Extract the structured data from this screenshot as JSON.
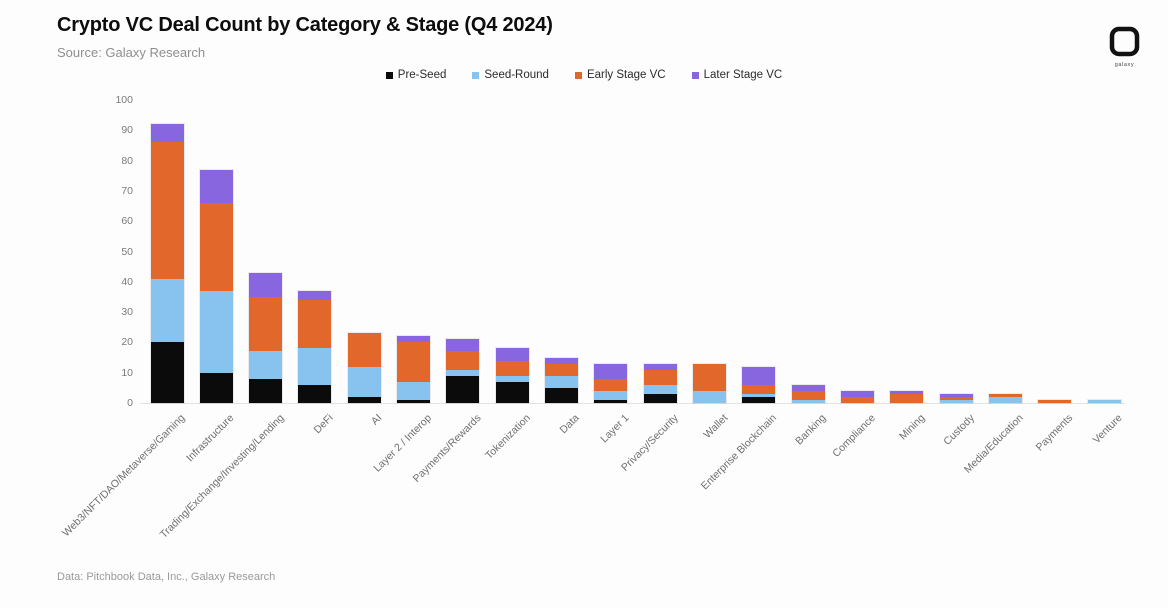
{
  "header": {
    "title": "Crypto VC Deal Count by Category & Stage (Q4 2024)",
    "source": "Source: Galaxy Research",
    "logo_text": "galaxy"
  },
  "footer": {
    "text": "Data: Pitchbook Data, Inc., Galaxy Research"
  },
  "chart_data": {
    "type": "bar",
    "stacked": true,
    "title": "Crypto VC Deal Count by Category & Stage (Q4 2024)",
    "xlabel": "",
    "ylabel": "",
    "ylim": [
      0,
      100
    ],
    "ytick_step": 10,
    "grid": false,
    "legend_position": "top",
    "categories": [
      "Web3/NFT/DAO/Metaverse/Gaming",
      "Infrastructure",
      "Trading/Exchange/Investing/Lending",
      "DeFi",
      "AI",
      "Layer 2 / Interop",
      "Payments/Rewards",
      "Tokenization",
      "Data",
      "Layer 1",
      "Privacy/Security",
      "Wallet",
      "Enterprise Blockchain",
      "Banking",
      "Compliance",
      "Mining",
      "Custody",
      "Media/Education",
      "Payments",
      "Venture"
    ],
    "series": [
      {
        "name": "Pre-Seed",
        "color": "#0b0b0b",
        "values": [
          20,
          10,
          8,
          6,
          2,
          1,
          9,
          7,
          5,
          1,
          3,
          0,
          2,
          0,
          0,
          0,
          0,
          0,
          0,
          0
        ]
      },
      {
        "name": "Seed-Round",
        "color": "#87c3ee",
        "values": [
          21,
          27,
          9,
          12,
          10,
          6,
          2,
          2,
          4,
          3,
          3,
          4,
          1,
          1,
          0,
          0,
          1,
          2,
          0,
          1
        ]
      },
      {
        "name": "Early Stage VC",
        "color": "#e2672a",
        "values": [
          45,
          29,
          18,
          16,
          11,
          13,
          6,
          5,
          4,
          4,
          5,
          9,
          3,
          3,
          2,
          3,
          1,
          1,
          1,
          0
        ]
      },
      {
        "name": "Later Stage VC",
        "color": "#8766df",
        "values": [
          6,
          11,
          8,
          3,
          0,
          2,
          4,
          4,
          2,
          5,
          2,
          0,
          6,
          2,
          2,
          1,
          1,
          0,
          0,
          0
        ]
      }
    ],
    "totals": [
      92,
      77,
      43,
      37,
      23,
      22,
      21,
      18,
      15,
      13,
      13,
      13,
      12,
      6,
      4,
      4,
      3,
      3,
      1,
      1
    ]
  }
}
